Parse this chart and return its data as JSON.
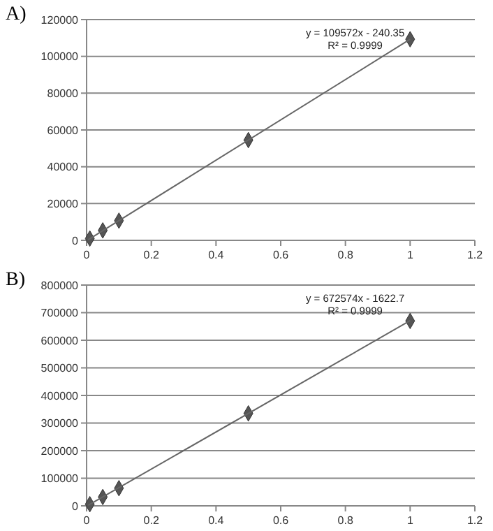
{
  "chart_data": [
    {
      "type": "scatter",
      "title": "A)",
      "xlim": [
        0,
        1.2
      ],
      "xticks": [
        0,
        0.2,
        0.4,
        0.6,
        0.8,
        1,
        1.2
      ],
      "ylim": [
        0,
        120000
      ],
      "yticks": [
        0,
        20000,
        40000,
        60000,
        80000,
        100000,
        120000
      ],
      "grid": "y",
      "marker": "diamond",
      "series": [
        {
          "color": "#555555",
          "x": [
            0.01,
            0.05,
            0.1,
            0.5,
            1
          ],
          "values": [
            1000,
            5400,
            10700,
            54500,
            109300
          ]
        },
        {
          "type": "line",
          "marker": "none",
          "color": "#666666",
          "x": [
            0.005,
            1
          ],
          "values": [
            300,
            109300
          ]
        }
      ],
      "annotations": [
        "y = 109572x - 240.35",
        "R² = 0.9999"
      ]
    },
    {
      "type": "scatter",
      "title": "B)",
      "xlim": [
        0,
        1.2
      ],
      "xticks": [
        0,
        0.2,
        0.4,
        0.6,
        0.8,
        1,
        1.2
      ],
      "ylim": [
        0,
        800000
      ],
      "yticks": [
        0,
        100000,
        200000,
        300000,
        400000,
        500000,
        600000,
        700000,
        800000
      ],
      "grid": "y",
      "marker": "diamond",
      "series": [
        {
          "color": "#555555",
          "x": [
            0.01,
            0.05,
            0.1,
            0.5,
            1
          ],
          "values": [
            6000,
            32000,
            64000,
            335000,
            670000
          ]
        },
        {
          "type": "line",
          "marker": "none",
          "color": "#666666",
          "x": [
            0.005,
            1
          ],
          "values": [
            2000,
            671000
          ]
        }
      ],
      "annotations": [
        "y = 672574x - 1622.7",
        "R² = 0.9999"
      ]
    }
  ]
}
